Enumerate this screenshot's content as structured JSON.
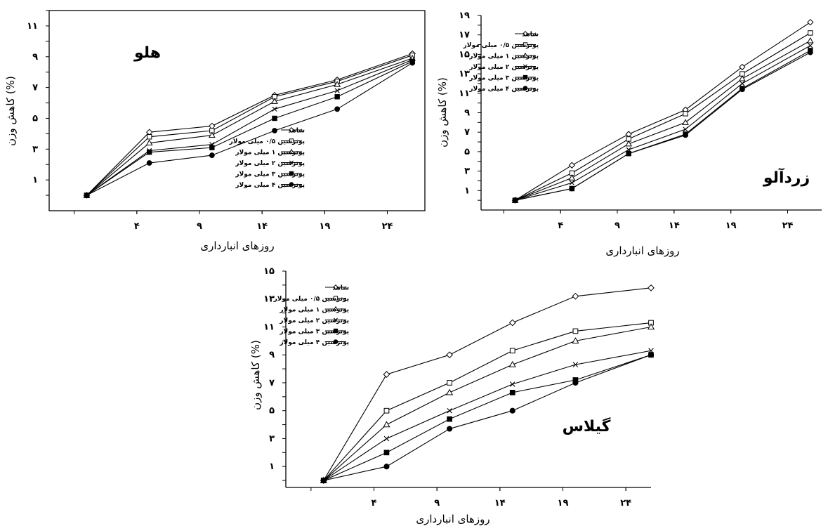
{
  "chart_data": [
    {
      "type": "line",
      "title": "هلو",
      "xlabel": "روزهای انبارداری",
      "ylabel": "کاهش وزن (%)",
      "x": [
        0,
        5,
        10,
        15,
        20,
        26
      ],
      "xticks": [
        4,
        9,
        14,
        19,
        24
      ],
      "xtick_labels": [
        "۴",
        "۹",
        "۱۴",
        "۱۹",
        "۲۴"
      ],
      "yticks": [
        1,
        3,
        5,
        7,
        9,
        11
      ],
      "ytick_labels": [
        "۱",
        "۳",
        "۵",
        "۷",
        "۹",
        "۱۱"
      ],
      "xlim": [
        -3,
        27
      ],
      "ylim": [
        -1,
        12
      ],
      "frame": "full",
      "legend_position": "bottom-right",
      "series": [
        {
          "name": "شاهد",
          "marker": "diamond",
          "values": [
            0,
            4.1,
            4.5,
            6.5,
            7.5,
            9.2
          ]
        },
        {
          "name": "پوترسین ۰/۵ میلی مولار",
          "marker": "square",
          "values": [
            0,
            3.8,
            4.2,
            6.4,
            7.4,
            9.1
          ]
        },
        {
          "name": "پوترسین ۱ میلی مولار",
          "marker": "triangle",
          "values": [
            0,
            3.4,
            3.9,
            6.1,
            7.2,
            8.9
          ]
        },
        {
          "name": "پوترسین ۲ میلی مولار",
          "marker": "x",
          "values": [
            0,
            2.9,
            3.3,
            5.6,
            6.8,
            8.8
          ]
        },
        {
          "name": "پوترسین ۳ میلی مولار",
          "marker": "filled-square",
          "values": [
            0,
            2.8,
            3.1,
            5.0,
            6.4,
            8.7
          ]
        },
        {
          "name": "پوترسین ۴ میلی مولار",
          "marker": "filled-circle",
          "values": [
            0,
            2.1,
            2.6,
            4.2,
            5.6,
            8.6
          ]
        }
      ]
    },
    {
      "type": "line",
      "title": "زردآلو",
      "xlabel": "روزهای انبارداری",
      "ylabel": "کاهش وزن (%)",
      "x": [
        0,
        5,
        10,
        15,
        20,
        26
      ],
      "xticks": [
        4,
        9,
        14,
        19,
        24
      ],
      "xtick_labels": [
        "۴",
        "۹",
        "۱۴",
        "۱۹",
        "۲۴"
      ],
      "yticks": [
        1,
        3,
        5,
        7,
        9,
        11,
        13,
        15,
        17,
        19
      ],
      "ytick_labels": [
        "۱",
        "۳",
        "۵",
        "۷",
        "۹",
        "۱۱",
        "۱۳",
        "۱۵",
        "۱۷",
        "۱۹"
      ],
      "xlim": [
        -3,
        27
      ],
      "ylim": [
        -1,
        19
      ],
      "frame": "open",
      "legend_position": "top-left",
      "series": [
        {
          "name": "شاهد",
          "marker": "diamond",
          "values": [
            0,
            3.6,
            6.8,
            9.3,
            13.7,
            18.3
          ]
        },
        {
          "name": "پوترسین ۰/۵ میلی مولار",
          "marker": "square",
          "values": [
            0,
            2.8,
            6.3,
            8.9,
            13.0,
            17.2
          ]
        },
        {
          "name": "پوترسین ۱ میلی مولار",
          "marker": "triangle",
          "values": [
            0,
            2.3,
            5.8,
            8.0,
            12.5,
            16.4
          ]
        },
        {
          "name": "پوترسین ۲ میلی مولار",
          "marker": "x",
          "values": [
            0,
            1.8,
            5.2,
            7.3,
            12.0,
            15.9
          ]
        },
        {
          "name": "پوترسین ۳ میلی مولار",
          "marker": "filled-square",
          "values": [
            0,
            1.2,
            4.8,
            6.8,
            11.5,
            15.4
          ]
        },
        {
          "name": "پوترسین ۴ میلی مولار",
          "marker": "filled-circle",
          "values": [
            0,
            1.2,
            4.8,
            6.7,
            11.4,
            15.2
          ]
        }
      ]
    },
    {
      "type": "line",
      "title": "گیلاس",
      "xlabel": "روزهای انبارداری",
      "ylabel": "کاهش وزن (%)",
      "x": [
        0,
        5,
        10,
        15,
        20,
        26
      ],
      "xticks": [
        4,
        9,
        14,
        19,
        24
      ],
      "xtick_labels": [
        "۴",
        "۹",
        "۱۴",
        "۱۹",
        "۲۴"
      ],
      "yticks": [
        1,
        3,
        5,
        7,
        9,
        11,
        13,
        15
      ],
      "ytick_labels": [
        "۱",
        "۳",
        "۵",
        "۷",
        "۹",
        "۱۱",
        "۱۳",
        "۱۵"
      ],
      "xlim": [
        -3,
        26
      ],
      "ylim": [
        -0.5,
        15
      ],
      "frame": "open",
      "legend_position": "top-left",
      "series": [
        {
          "name": "شاهد",
          "marker": "diamond",
          "values": [
            0,
            7.6,
            9.0,
            11.3,
            13.2,
            13.8
          ]
        },
        {
          "name": "پوترسین ۰/۵ میلی مولار",
          "marker": "square",
          "values": [
            0,
            5.0,
            7.0,
            9.3,
            10.7,
            11.3
          ]
        },
        {
          "name": "پوترسین ۱ میلی مولار",
          "marker": "triangle",
          "values": [
            0,
            4.0,
            6.3,
            8.3,
            10.0,
            11.0
          ]
        },
        {
          "name": "پوترسین ۲ میلی مولار",
          "marker": "x",
          "values": [
            0,
            3.0,
            5.0,
            6.9,
            8.3,
            9.3
          ]
        },
        {
          "name": "پوترسین ۳ میلی مولار",
          "marker": "filled-square",
          "values": [
            0,
            2.0,
            4.4,
            6.3,
            7.2,
            9.0
          ]
        },
        {
          "name": "پوترسین ۴ میلی مولار",
          "marker": "filled-circle",
          "values": [
            0,
            1.0,
            3.7,
            5.0,
            7.0,
            9.0
          ]
        }
      ]
    }
  ]
}
